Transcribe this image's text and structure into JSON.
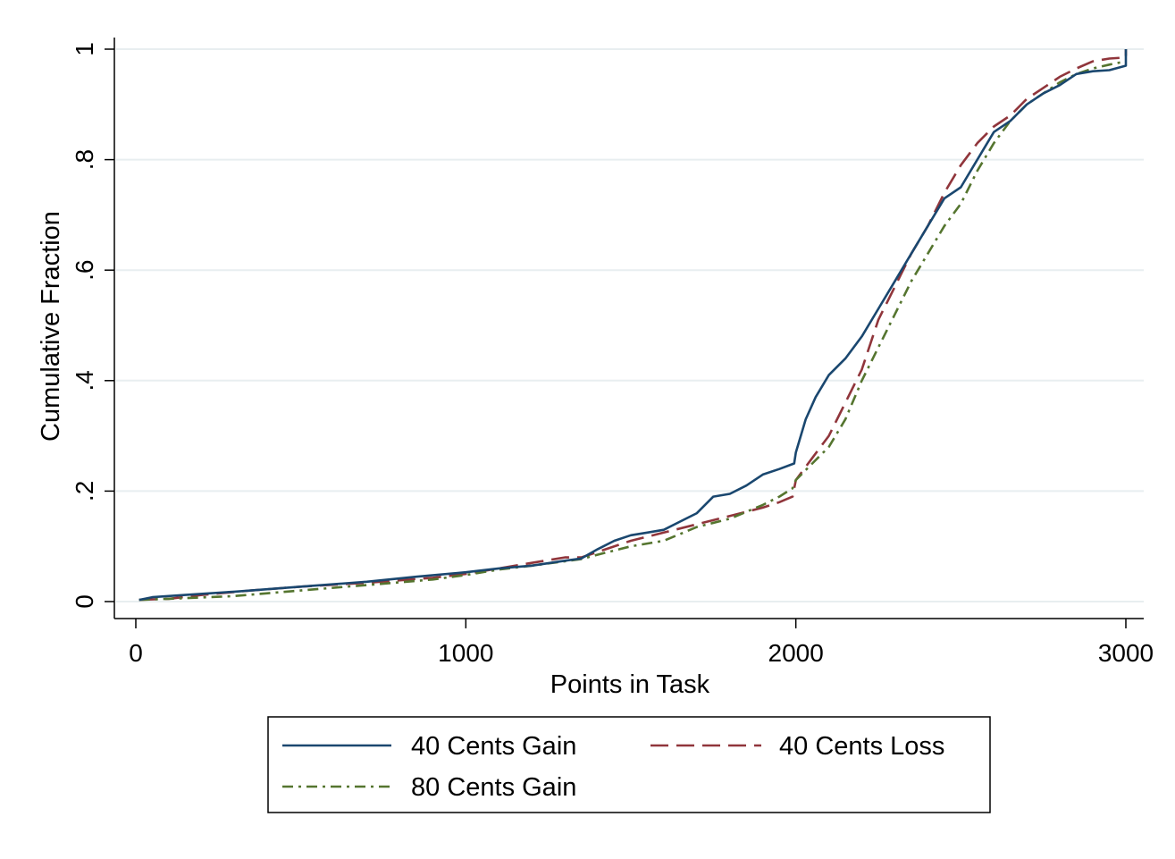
{
  "chart_data": {
    "type": "line",
    "xlabel": "Points in Task",
    "ylabel": "Cumulative Fraction",
    "xlim": [
      0,
      3000
    ],
    "ylim": [
      0,
      1
    ],
    "x_ticks": [
      {
        "value": 0,
        "label": "0"
      },
      {
        "value": 1000,
        "label": "1000"
      },
      {
        "value": 2000,
        "label": "2000"
      },
      {
        "value": 3000,
        "label": "3000"
      }
    ],
    "y_ticks": [
      {
        "value": 0,
        "label": "0"
      },
      {
        "value": 0.2,
        "label": ".2"
      },
      {
        "value": 0.4,
        "label": ".4"
      },
      {
        "value": 0.6,
        "label": ".6"
      },
      {
        "value": 0.8,
        "label": ".8"
      },
      {
        "value": 1,
        "label": "1"
      }
    ],
    "grid": "horizontal",
    "legend_position": "bottom",
    "series": [
      {
        "name": "40 Cents Gain",
        "color": "#1a476f",
        "dash": "solid",
        "x": [
          10,
          50,
          150,
          300,
          500,
          700,
          850,
          1000,
          1100,
          1200,
          1300,
          1350,
          1400,
          1450,
          1500,
          1550,
          1600,
          1650,
          1700,
          1750,
          1800,
          1850,
          1900,
          1950,
          1995,
          2000,
          2030,
          2060,
          2100,
          2150,
          2200,
          2250,
          2300,
          2350,
          2400,
          2450,
          2500,
          2550,
          2600,
          2650,
          2700,
          2750,
          2800,
          2850,
          2900,
          2950,
          3000,
          3000
        ],
        "y": [
          0.003,
          0.008,
          0.012,
          0.018,
          0.027,
          0.036,
          0.045,
          0.053,
          0.06,
          0.065,
          0.074,
          0.078,
          0.095,
          0.11,
          0.12,
          0.125,
          0.13,
          0.145,
          0.16,
          0.19,
          0.195,
          0.21,
          0.23,
          0.24,
          0.25,
          0.27,
          0.33,
          0.37,
          0.41,
          0.44,
          0.48,
          0.53,
          0.58,
          0.63,
          0.68,
          0.73,
          0.75,
          0.8,
          0.85,
          0.87,
          0.9,
          0.92,
          0.935,
          0.955,
          0.96,
          0.962,
          0.97,
          1.0
        ]
      },
      {
        "name": "40 Cents Loss",
        "color": "#90353b",
        "dash": "long-dash",
        "x": [
          10,
          100,
          200,
          350,
          500,
          700,
          900,
          1000,
          1100,
          1200,
          1300,
          1350,
          1400,
          1500,
          1600,
          1700,
          1800,
          1900,
          1950,
          1990,
          2000,
          2050,
          2100,
          2150,
          2200,
          2250,
          2300,
          2350,
          2400,
          2450,
          2500,
          2550,
          2600,
          2650,
          2700,
          2750,
          2800,
          2850,
          2900,
          2950,
          3000,
          3000
        ],
        "y": [
          0.003,
          0.005,
          0.012,
          0.02,
          0.027,
          0.034,
          0.043,
          0.05,
          0.06,
          0.07,
          0.08,
          0.08,
          0.09,
          0.11,
          0.125,
          0.14,
          0.155,
          0.17,
          0.18,
          0.19,
          0.22,
          0.26,
          0.3,
          0.36,
          0.42,
          0.51,
          0.57,
          0.63,
          0.68,
          0.74,
          0.79,
          0.83,
          0.86,
          0.88,
          0.91,
          0.93,
          0.95,
          0.965,
          0.978,
          0.983,
          0.985,
          1.0
        ]
      },
      {
        "name": "80 Cents Gain",
        "color": "#55752f",
        "dash": "dash-dot",
        "x": [
          10,
          100,
          300,
          500,
          700,
          900,
          1000,
          1100,
          1200,
          1300,
          1350,
          1400,
          1500,
          1600,
          1700,
          1800,
          1900,
          1950,
          1990,
          2000,
          2050,
          2100,
          2150,
          2200,
          2250,
          2300,
          2350,
          2400,
          2450,
          2500,
          2550,
          2600,
          2650,
          2700,
          2750,
          2800,
          2850,
          2900,
          2950,
          3000
        ],
        "y": [
          0.003,
          0.005,
          0.01,
          0.02,
          0.03,
          0.04,
          0.048,
          0.058,
          0.065,
          0.073,
          0.077,
          0.085,
          0.1,
          0.11,
          0.135,
          0.15,
          0.175,
          0.19,
          0.205,
          0.22,
          0.25,
          0.28,
          0.33,
          0.4,
          0.46,
          0.52,
          0.58,
          0.63,
          0.68,
          0.72,
          0.78,
          0.83,
          0.87,
          0.9,
          0.92,
          0.94,
          0.955,
          0.965,
          0.972,
          0.978
        ]
      }
    ]
  }
}
